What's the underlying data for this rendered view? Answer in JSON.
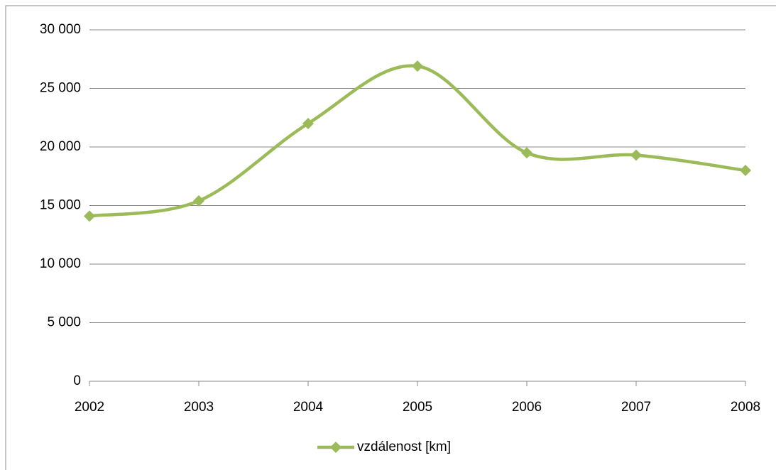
{
  "chart_data": {
    "type": "line",
    "x": [
      2002,
      2003,
      2004,
      2005,
      2006,
      2007,
      2008
    ],
    "series": [
      {
        "name": "vzdálenost [km]",
        "color": "#9bbb59",
        "values": [
          14100,
          15400,
          22000,
          26900,
          19500,
          19300,
          18000
        ]
      }
    ],
    "xlim": [
      2002,
      2008
    ],
    "xticks": [
      2002,
      2003,
      2004,
      2005,
      2006,
      2007,
      2008
    ],
    "ylim": [
      0,
      30000
    ],
    "yticks": [
      0,
      {
        "value": 5000,
        "label": "5 000"
      },
      {
        "value": 10000,
        "label": "10 000"
      },
      {
        "value": 15000,
        "label": "15 000"
      },
      {
        "value": 20000,
        "label": "20 000"
      },
      {
        "value": 25000,
        "label": "25 000"
      },
      {
        "value": 30000,
        "label": "30 000"
      }
    ],
    "grid": true,
    "smooth": true,
    "legend": "bottom"
  }
}
